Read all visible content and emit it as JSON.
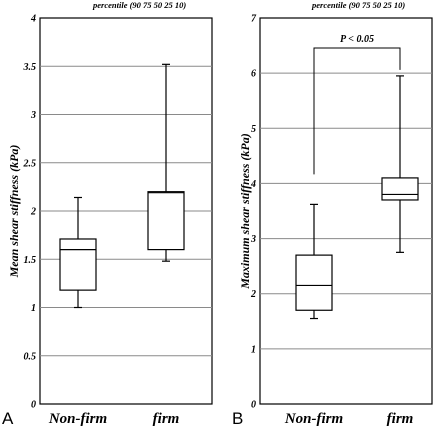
{
  "chart_data": [
    {
      "panel": "A",
      "type": "box",
      "header": "percentile (90 75 50 25 10)",
      "ylabel": "Mean shear stiffness (kPa)",
      "ylim": [
        0,
        4
      ],
      "yticks": [
        "0",
        "0.5",
        "1",
        "1.5",
        "2",
        "2.5",
        "3",
        "3.5",
        "4"
      ],
      "grid": true,
      "categories": [
        "Non-firm",
        "firm"
      ],
      "boxes": [
        {
          "label": "Non-firm",
          "p10": 1.0,
          "p25": 1.18,
          "p50": 1.6,
          "p75": 1.71,
          "p90": 2.14
        },
        {
          "label": "firm",
          "p10": 1.48,
          "p25": 1.6,
          "p50": 2.19,
          "p75": 2.2,
          "p90": 3.52
        }
      ],
      "annotation": ""
    },
    {
      "panel": "B",
      "type": "box",
      "header": "percentile (90 75 50 25 10)",
      "ylabel": "Maximum shear stiffness (kPa)",
      "ylim": [
        0,
        7
      ],
      "yticks": [
        "0",
        "1",
        "2",
        "3",
        "4",
        "5",
        "6",
        "7"
      ],
      "grid": true,
      "categories": [
        "Non-firm",
        "firm"
      ],
      "boxes": [
        {
          "label": "Non-firm",
          "p10": 1.55,
          "p25": 1.7,
          "p50": 2.15,
          "p75": 2.7,
          "p90": 3.62
        },
        {
          "label": "firm",
          "p10": 2.75,
          "p25": 3.7,
          "p50": 3.8,
          "p75": 4.1,
          "p90": 5.95
        }
      ],
      "annotation": "P < 0.05"
    }
  ]
}
